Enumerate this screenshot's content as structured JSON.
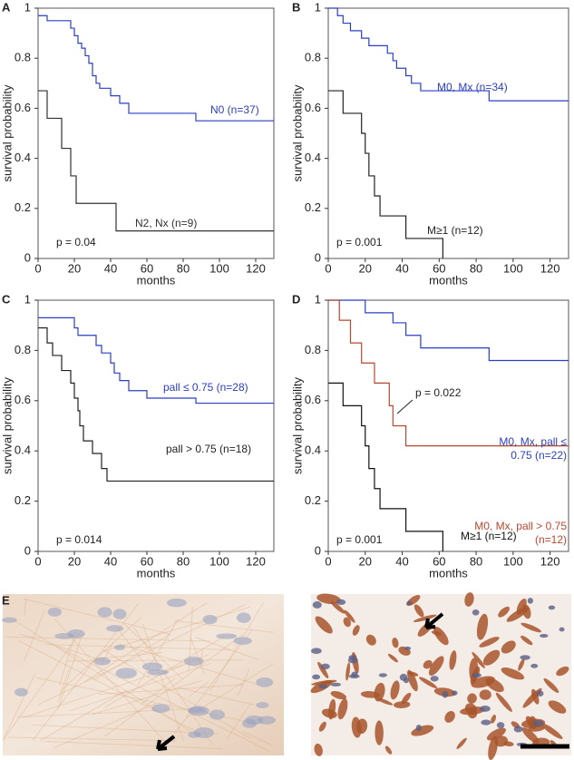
{
  "chart_data": [
    {
      "type": "step",
      "panel": "A",
      "xlabel": "months",
      "ylabel": "survival probability",
      "xlim": [
        0,
        130
      ],
      "ylim": [
        0,
        1
      ],
      "xticks": [
        0,
        20,
        40,
        60,
        80,
        100,
        120
      ],
      "yticks": [
        0,
        0.2,
        0.4,
        0.6,
        0.8,
        1
      ],
      "annotations": [
        "p = 0.04"
      ],
      "series": [
        {
          "name": "N0 (n=37)",
          "color": "#2b3fc4",
          "x": [
            0,
            5,
            18,
            20,
            22,
            24,
            26,
            28,
            30,
            32,
            34,
            40,
            45,
            50,
            62,
            87,
            130
          ],
          "values": [
            0.97,
            0.95,
            0.92,
            0.89,
            0.86,
            0.84,
            0.81,
            0.78,
            0.73,
            0.7,
            0.68,
            0.65,
            0.62,
            0.58,
            0.58,
            0.55,
            0.55
          ]
        },
        {
          "name": "N2, Nx (n=9)",
          "color": "#333333",
          "x": [
            0,
            5,
            13,
            18,
            21,
            43,
            130
          ],
          "values": [
            0.67,
            0.56,
            0.44,
            0.33,
            0.22,
            0.11,
            0.11
          ]
        }
      ]
    },
    {
      "type": "step",
      "panel": "B",
      "xlabel": "months",
      "ylabel": "survival probability",
      "xlim": [
        0,
        130
      ],
      "ylim": [
        0,
        1
      ],
      "xticks": [
        0,
        20,
        40,
        60,
        80,
        100,
        120
      ],
      "yticks": [
        0,
        0.2,
        0.4,
        0.6,
        0.8,
        1
      ],
      "annotations": [
        "p = 0.001"
      ],
      "series": [
        {
          "name": "M0, Mx (n=34)",
          "color": "#2b3fc4",
          "x": [
            0,
            5,
            8,
            12,
            18,
            22,
            32,
            35,
            37,
            42,
            45,
            50,
            87,
            130
          ],
          "values": [
            1,
            0.97,
            0.94,
            0.91,
            0.88,
            0.85,
            0.82,
            0.79,
            0.76,
            0.73,
            0.7,
            0.67,
            0.63,
            0.63
          ]
        },
        {
          "name": "M≥1 (n=12)",
          "color": "#222222",
          "x": [
            0,
            8,
            18,
            20,
            22,
            25,
            28,
            42,
            62
          ],
          "values": [
            0.67,
            0.58,
            0.5,
            0.42,
            0.33,
            0.25,
            0.17,
            0.08,
            0
          ]
        }
      ]
    },
    {
      "type": "step",
      "panel": "C",
      "xlabel": "months",
      "ylabel": "survival probability",
      "xlim": [
        0,
        130
      ],
      "ylim": [
        0,
        1
      ],
      "xticks": [
        0,
        20,
        40,
        60,
        80,
        100,
        120
      ],
      "yticks": [
        0,
        0.2,
        0.4,
        0.6,
        0.8,
        1
      ],
      "annotations": [
        "p = 0.014"
      ],
      "series": [
        {
          "name": "pall ≤ 0.75 (n=28)",
          "color": "#2b3fc4",
          "x": [
            0,
            20,
            22,
            32,
            35,
            40,
            42,
            45,
            50,
            60,
            87,
            130
          ],
          "values": [
            0.93,
            0.89,
            0.86,
            0.82,
            0.79,
            0.75,
            0.71,
            0.68,
            0.64,
            0.61,
            0.59,
            0.59
          ]
        },
        {
          "name": "pall > 0.75 (n=18)",
          "color": "#222222",
          "x": [
            0,
            5,
            8,
            13,
            18,
            20,
            22,
            23,
            25,
            30,
            35,
            38,
            43,
            130
          ],
          "values": [
            0.89,
            0.83,
            0.78,
            0.72,
            0.67,
            0.61,
            0.56,
            0.5,
            0.44,
            0.39,
            0.33,
            0.28,
            0.28,
            0.28
          ]
        }
      ]
    },
    {
      "type": "step",
      "panel": "D",
      "xlabel": "months",
      "ylabel": "survival probability",
      "xlim": [
        0,
        130
      ],
      "ylim": [
        0,
        1
      ],
      "xticks": [
        0,
        20,
        40,
        60,
        80,
        100,
        120
      ],
      "yticks": [
        0,
        0.2,
        0.4,
        0.6,
        0.8,
        1
      ],
      "annotations": [
        "p = 0.022",
        "p = 0.001"
      ],
      "series": [
        {
          "name": "M0, Mx, pall ≤ 0.75 (n=22)",
          "color": "#2b3fc4",
          "x": [
            0,
            20,
            35,
            42,
            50,
            87,
            130
          ],
          "values": [
            1,
            0.95,
            0.91,
            0.86,
            0.81,
            0.76,
            0.76
          ]
        },
        {
          "name": "M0, Mx, pall > 0.75 (n=12)",
          "color": "#b5482e",
          "x": [
            0,
            6,
            12,
            18,
            25,
            33,
            35,
            42,
            130
          ],
          "values": [
            1,
            0.92,
            0.83,
            0.75,
            0.67,
            0.58,
            0.5,
            0.42,
            0.42
          ]
        },
        {
          "name": "M≥1 (n=12)",
          "color": "#111111",
          "x": [
            0,
            8,
            18,
            20,
            22,
            25,
            28,
            42,
            62
          ],
          "values": [
            0.67,
            0.58,
            0.5,
            0.42,
            0.33,
            0.25,
            0.17,
            0.08,
            0
          ]
        }
      ]
    }
  ],
  "images": {
    "panel": "E"
  }
}
